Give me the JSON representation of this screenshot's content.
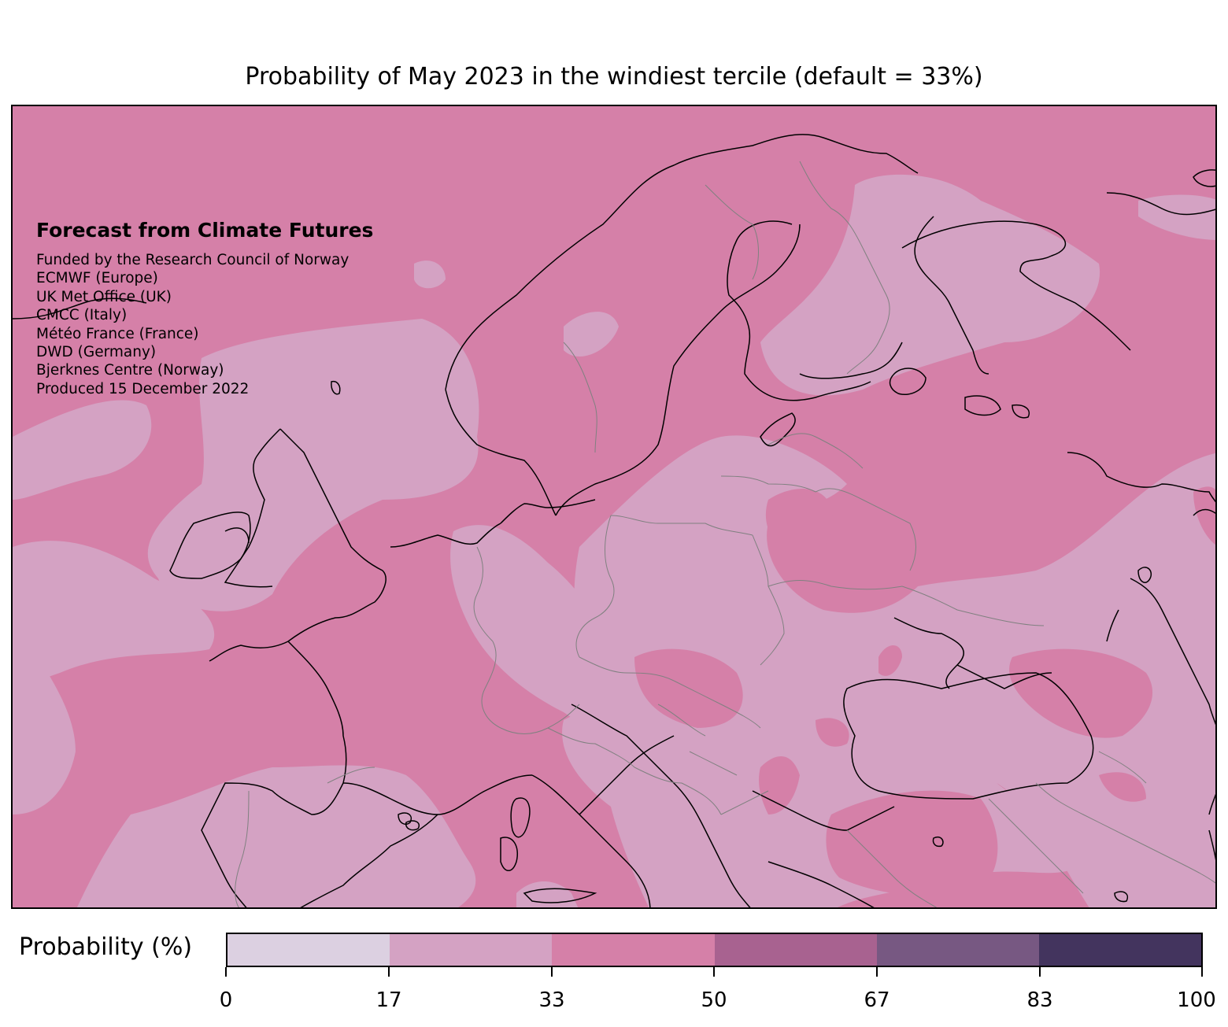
{
  "title": "Probability of May 2023 in the windiest tercile (default = 33%)",
  "credits": {
    "heading": "Forecast from Climate Futures",
    "lines": [
      "Funded by the Research Council of Norway",
      "ECMWF (Europe)",
      "UK Met Office (UK)",
      "CMCC (Italy)",
      "Météo France (France)",
      "DWD (Germany)",
      "Bjerknes Centre (Norway)",
      "Produced 15 December 2022"
    ]
  },
  "colorbar": {
    "label": "Probability (%)",
    "ticks": [
      "0",
      "17",
      "33",
      "50",
      "67",
      "83",
      "100"
    ],
    "colors": [
      "#dcd0e1",
      "#d4a2c3",
      "#d580a8",
      "#a86290",
      "#775882",
      "#43345e"
    ]
  },
  "map_colors": {
    "band_17_33": "#d4a2c3",
    "band_33_50": "#d580a8",
    "coastline": "#000000",
    "borders": "#808080"
  }
}
